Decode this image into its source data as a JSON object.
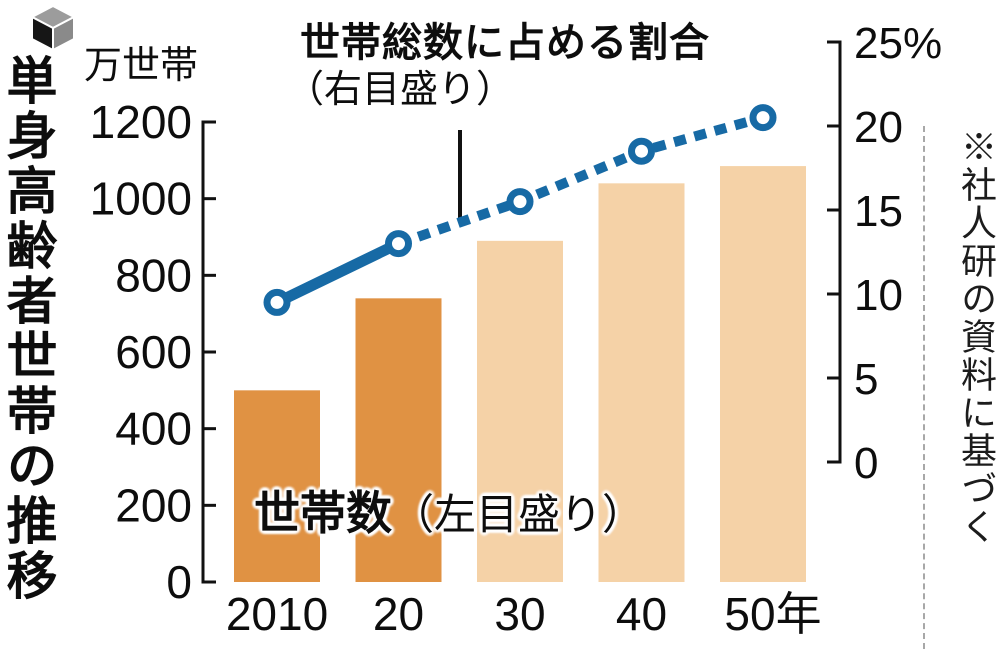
{
  "page": {
    "left_title": "単身高齢者世帯の推移",
    "unit_label": "万世帯",
    "source_note": "※社人研の資料に基づく"
  },
  "labels": {
    "line_series_title": "世帯総数に占める割合",
    "line_series_sub": "（右目盛り）",
    "bar_series_title": "世帯数",
    "bar_series_sub": "（左目盛り）"
  },
  "chart_data": {
    "type": "bar",
    "subtype": "bar+line dual axis",
    "categories": [
      "2010",
      "20",
      "30",
      "40",
      "50年"
    ],
    "series": [
      {
        "name": "世帯数（左目盛り）",
        "type": "bar",
        "axis": "left",
        "unit": "万世帯",
        "values": [
          500,
          740,
          890,
          1040,
          1085
        ]
      },
      {
        "name": "世帯総数に占める割合（右目盛り）",
        "type": "line",
        "axis": "right",
        "unit": "%",
        "values": [
          9.5,
          13.0,
          15.5,
          18.5,
          20.5
        ],
        "solid_until_index": 1,
        "dotted_after_index": 1,
        "marker": "open-circle"
      }
    ],
    "left_axis": {
      "title": "万世帯",
      "range": [
        0,
        1200
      ],
      "ticks": [
        1200,
        1000,
        800,
        600,
        400,
        200,
        0
      ]
    },
    "right_axis": {
      "title": "%",
      "range": [
        0,
        25
      ],
      "tick_labels": [
        "25%",
        "20",
        "15",
        "10",
        "5",
        "0"
      ],
      "tick_values": [
        25,
        20,
        15,
        10,
        5,
        0
      ]
    },
    "grid": false,
    "legend_position": "annotations-on-chart"
  },
  "colors": {
    "bar_actual": "#e09243",
    "bar_projected": "#f5d2a7",
    "line": "#176aa5",
    "marker_fill": "#ffffff",
    "axis": "#111111",
    "separator_dash": "#a8a8a8",
    "background": "#ffffff"
  }
}
